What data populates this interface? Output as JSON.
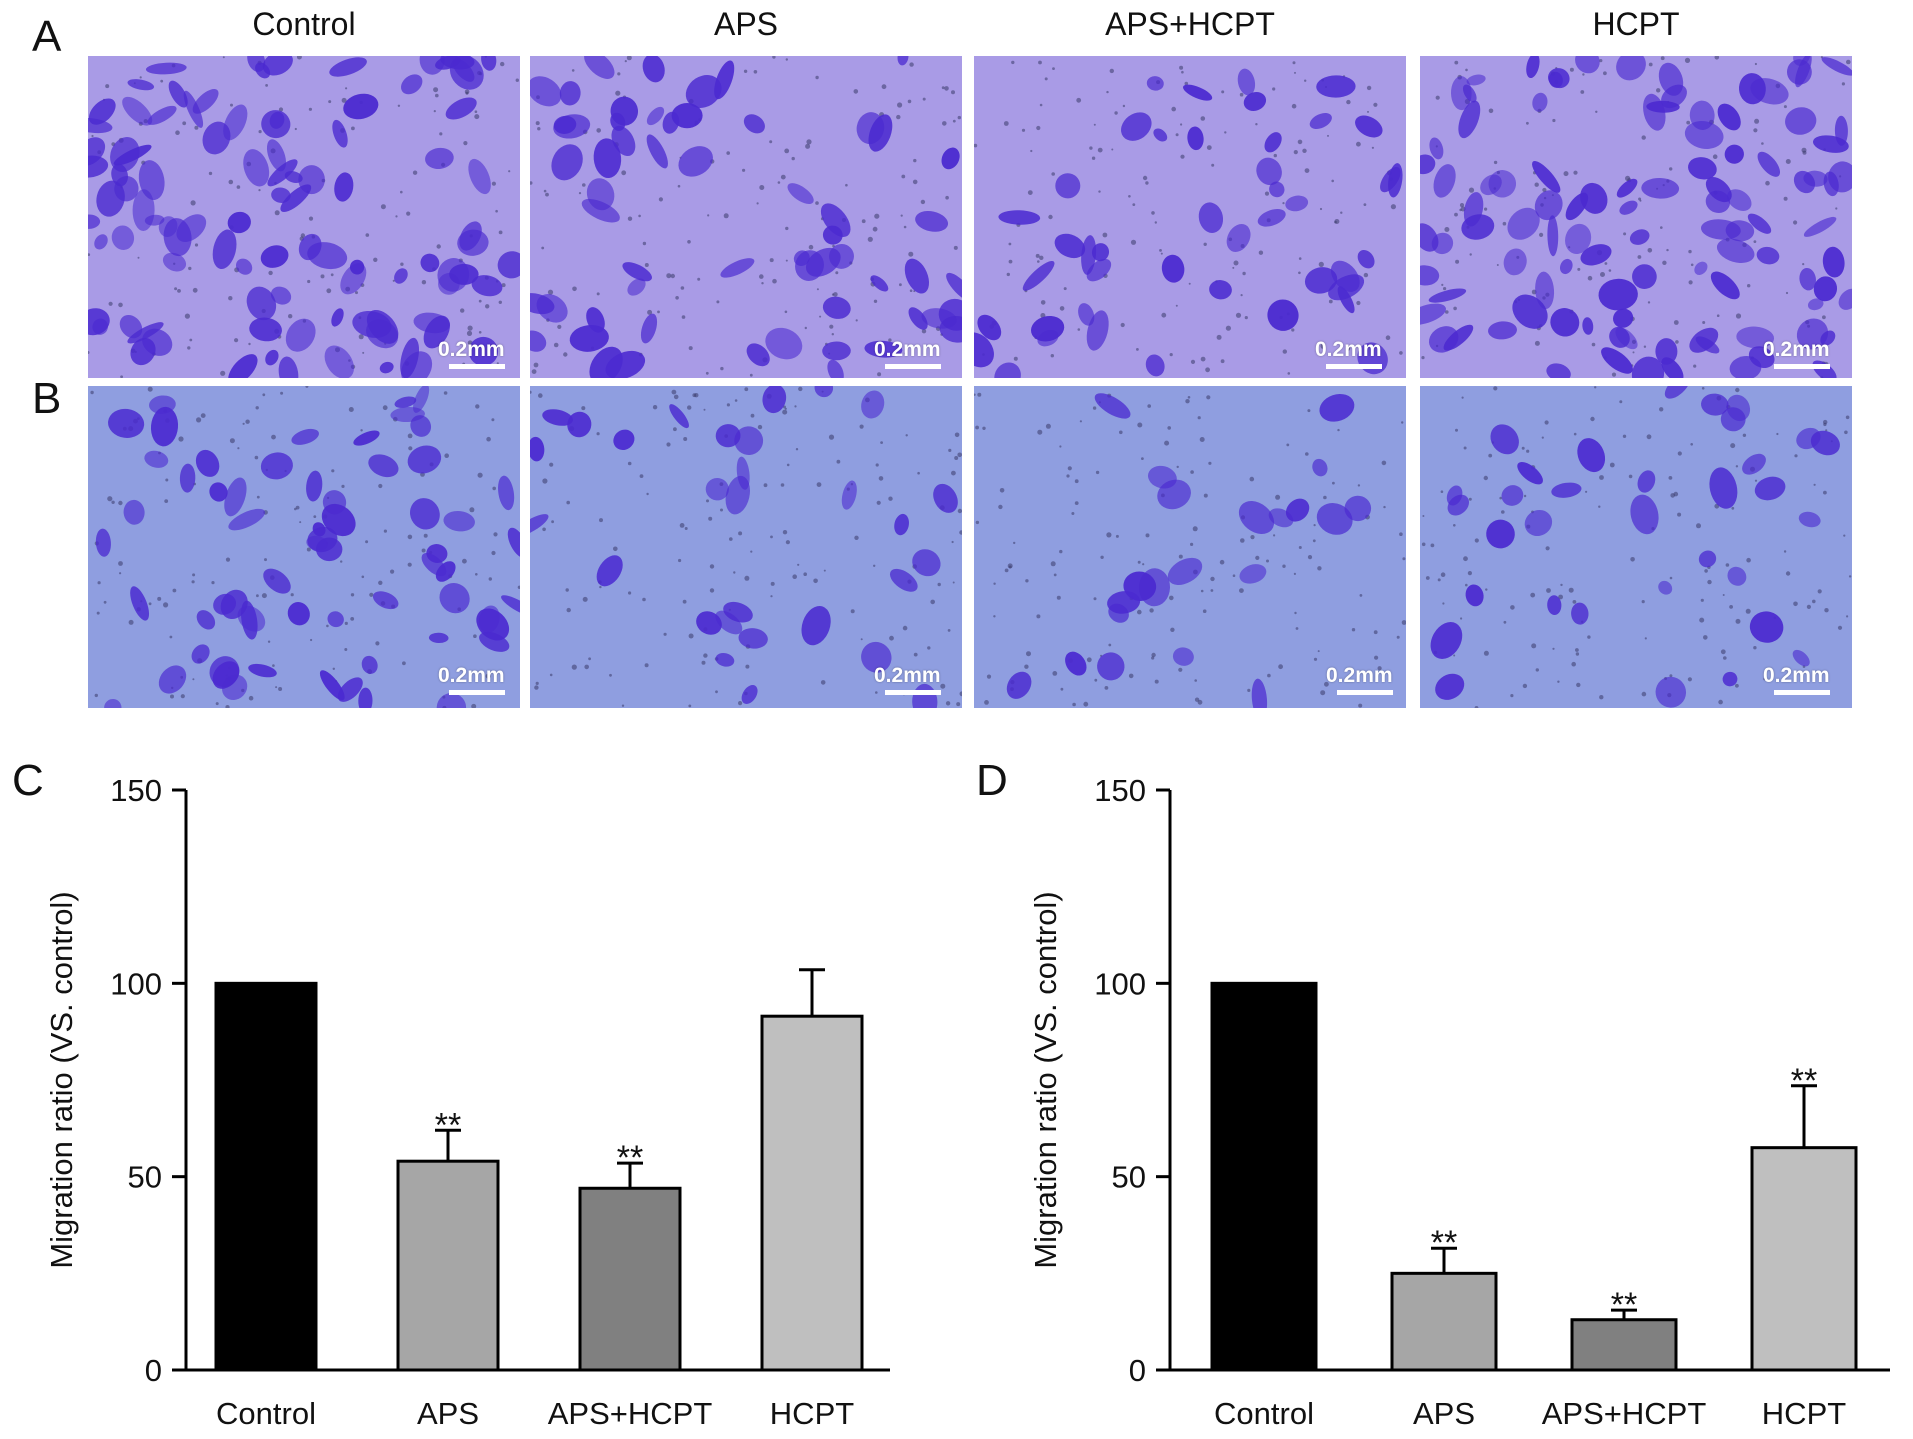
{
  "figure": {
    "panel_labels": [
      "A",
      "B",
      "C",
      "D"
    ],
    "columns": [
      "Control",
      "APS",
      "APS+HCPT",
      "HCPT"
    ],
    "scale_bar_label": "0.2mm",
    "colors": {
      "row_a_background": "#a99be6",
      "row_b_background": "#8f9ee0",
      "cell_stain": "#4b2ad0",
      "bar_control": "#000000",
      "bar_aps": "#a6a6a6",
      "bar_aps_hcpt": "#808080",
      "bar_hcpt": "#bfbfbf"
    }
  },
  "chart_data": [
    {
      "type": "bar",
      "panel": "C",
      "categories": [
        "Control",
        "APS",
        "APS+HCPT",
        "HCPT"
      ],
      "values": [
        100,
        54,
        47,
        91.5
      ],
      "errors": [
        0,
        8,
        6.5,
        12
      ],
      "significance": [
        "",
        "**",
        "**",
        ""
      ],
      "ylabel": "Migration ratio (VS. control)",
      "ylim": [
        0,
        150
      ],
      "yticks": [
        0,
        50,
        100,
        150
      ],
      "grid": false,
      "legend": "none"
    },
    {
      "type": "bar",
      "panel": "D",
      "categories": [
        "Control",
        "APS",
        "APS+HCPT",
        "HCPT"
      ],
      "values": [
        100,
        25,
        13,
        57.5
      ],
      "errors": [
        0,
        6.5,
        2.5,
        16
      ],
      "significance": [
        "",
        "**",
        "**",
        "**"
      ],
      "ylabel": "Migration ratio (VS. control)",
      "ylim": [
        0,
        150
      ],
      "yticks": [
        0,
        50,
        100,
        150
      ],
      "grid": false,
      "legend": "none"
    }
  ]
}
